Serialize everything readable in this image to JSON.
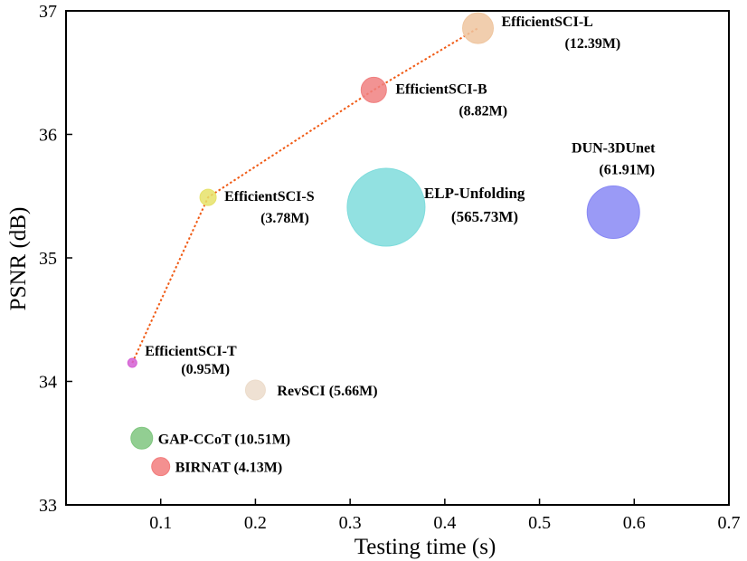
{
  "chart_data": {
    "type": "scatter",
    "title": "",
    "xlabel": "Testing time (s)",
    "ylabel": "PSNR (dB)",
    "xlim": [
      0,
      0.7
    ],
    "ylim": [
      33,
      37
    ],
    "xticks": [
      0.1,
      0.2,
      0.3,
      0.4,
      0.5,
      0.6,
      0.7
    ],
    "yticks": [
      33,
      34,
      35,
      36,
      37
    ],
    "xtick_labels": [
      "0.1",
      "0.2",
      "0.3",
      "0.4",
      "0.5",
      "0.6",
      "0.7"
    ],
    "ytick_labels": [
      "33",
      "34",
      "35",
      "36",
      "37"
    ],
    "grid": false,
    "legend": "none",
    "size_encodes": "model parameters (M)",
    "points": [
      {
        "name": "EfficientSCI-T",
        "params": "(0.95M)",
        "params_m": 0.95,
        "x": 0.07,
        "y": 34.15,
        "color": "#d45fd4",
        "label": [
          "EfficientSCI-T",
          "(0.95M)"
        ]
      },
      {
        "name": "EfficientSCI-S",
        "params": "(3.78M)",
        "params_m": 3.78,
        "x": 0.15,
        "y": 35.49,
        "color": "#e6e26a",
        "label": [
          "EfficientSCI-S",
          "(3.78M)"
        ]
      },
      {
        "name": "EfficientSCI-B",
        "params": "(8.82M)",
        "params_m": 8.82,
        "x": 0.325,
        "y": 36.36,
        "color": "#f08080",
        "label": [
          "EfficientSCI-B",
          "(8.82M)"
        ]
      },
      {
        "name": "EfficientSCI-L",
        "params": "(12.39M)",
        "params_m": 12.39,
        "x": 0.435,
        "y": 36.86,
        "color": "#efc6a0",
        "label": [
          "EfficientSCI-L",
          "(12.39M)"
        ]
      },
      {
        "name": "ELP-Unfolding",
        "params": "(565.73M)",
        "params_m": 565.73,
        "x": 0.338,
        "y": 35.41,
        "color": "#7fdcdc",
        "label": [
          "ELP-Unfolding",
          "(565.73M)"
        ]
      },
      {
        "name": "DUN-3DUnet",
        "params": "(61.91M)",
        "params_m": 61.91,
        "x": 0.578,
        "y": 35.37,
        "color": "#8888f4",
        "label": [
          "DUN-3DUnet",
          "(61.91M)"
        ]
      },
      {
        "name": "RevSCI",
        "params": "(5.66M)",
        "params_m": 5.66,
        "x": 0.2,
        "y": 33.93,
        "color": "#ecdccb",
        "label": [
          "RevSCI (5.66M)"
        ]
      },
      {
        "name": "GAP-CCoT",
        "params": "(10.51M)",
        "params_m": 10.51,
        "x": 0.08,
        "y": 33.54,
        "color": "#7fc67f",
        "label": [
          "GAP-CCoT (10.51M)"
        ]
      },
      {
        "name": "BIRNAT",
        "params": "(4.13M)",
        "params_m": 4.13,
        "x": 0.1,
        "y": 33.31,
        "color": "#f27c7c",
        "label": [
          "BIRNAT (4.13M)"
        ]
      }
    ],
    "trend_line": {
      "series": [
        "EfficientSCI-T",
        "EfficientSCI-S",
        "EfficientSCI-B",
        "EfficientSCI-L"
      ],
      "color": "#f05a14",
      "style": "dotted"
    }
  }
}
